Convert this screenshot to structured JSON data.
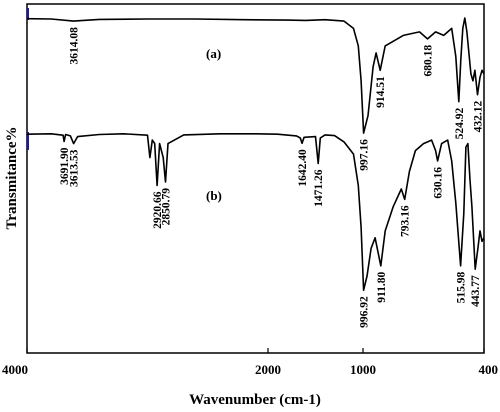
{
  "chart_data": {
    "type": "line",
    "title": "",
    "xlabel": "Wavenumber (cm-1)",
    "ylabel": "Transmitance%",
    "xlim": [
      4000,
      400
    ],
    "x_reversed": true,
    "x_ticks": [
      4000,
      2000,
      1000,
      400
    ],
    "x_tick_labels": [
      "4000",
      "2000",
      "1000",
      "400"
    ],
    "y_ticks_shown": false,
    "series": [
      {
        "name": "(a)",
        "points": [
          [
            4000,
            0.958
          ],
          [
            3800,
            0.957
          ],
          [
            3614.08,
            0.951
          ],
          [
            3400,
            0.956
          ],
          [
            3000,
            0.957
          ],
          [
            2600,
            0.957
          ],
          [
            2200,
            0.955
          ],
          [
            1800,
            0.954
          ],
          [
            1600,
            0.953
          ],
          [
            1400,
            0.955
          ],
          [
            1200,
            0.951
          ],
          [
            1100,
            0.93
          ],
          [
            1050,
            0.88
          ],
          [
            1020,
            0.78
          ],
          [
            997.16,
            0.63
          ],
          [
            975,
            0.68
          ],
          [
            950,
            0.82
          ],
          [
            935,
            0.86
          ],
          [
            914.51,
            0.81
          ],
          [
            890,
            0.88
          ],
          [
            800,
            0.91
          ],
          [
            720,
            0.92
          ],
          [
            680.18,
            0.9
          ],
          [
            640,
            0.92
          ],
          [
            600,
            0.91
          ],
          [
            560,
            0.93
          ],
          [
            540,
            0.85
          ],
          [
            524.92,
            0.72
          ],
          [
            515,
            0.84
          ],
          [
            505,
            0.93
          ],
          [
            495,
            0.96
          ],
          [
            485,
            0.92
          ],
          [
            475,
            0.86
          ],
          [
            465,
            0.8
          ],
          [
            455,
            0.78
          ],
          [
            445,
            0.81
          ],
          [
            432.12,
            0.74
          ],
          [
            420,
            0.79
          ],
          [
            410,
            0.81
          ],
          [
            400,
            0.8
          ]
        ]
      },
      {
        "name": "(b)",
        "points": [
          [
            4000,
            0.627
          ],
          [
            3800,
            0.628
          ],
          [
            3700,
            0.624
          ],
          [
            3691.9,
            0.606
          ],
          [
            3680,
            0.626
          ],
          [
            3640,
            0.622
          ],
          [
            3613.53,
            0.6
          ],
          [
            3580,
            0.62
          ],
          [
            3400,
            0.626
          ],
          [
            3200,
            0.628
          ],
          [
            3000,
            0.624
          ],
          [
            2980,
            0.56
          ],
          [
            2960,
            0.61
          ],
          [
            2940,
            0.6
          ],
          [
            2920.66,
            0.48
          ],
          [
            2900,
            0.6
          ],
          [
            2870,
            0.56
          ],
          [
            2850.79,
            0.49
          ],
          [
            2830,
            0.6
          ],
          [
            2700,
            0.625
          ],
          [
            2400,
            0.628
          ],
          [
            2100,
            0.628
          ],
          [
            1900,
            0.627
          ],
          [
            1700,
            0.622
          ],
          [
            1660,
            0.616
          ],
          [
            1642.4,
            0.601
          ],
          [
            1620,
            0.618
          ],
          [
            1500,
            0.62
          ],
          [
            1471.26,
            0.543
          ],
          [
            1450,
            0.616
          ],
          [
            1400,
            0.625
          ],
          [
            1300,
            0.623
          ],
          [
            1200,
            0.605
          ],
          [
            1100,
            0.57
          ],
          [
            1050,
            0.48
          ],
          [
            1020,
            0.36
          ],
          [
            996.92,
            0.18
          ],
          [
            980,
            0.22
          ],
          [
            960,
            0.3
          ],
          [
            940,
            0.33
          ],
          [
            911.8,
            0.25
          ],
          [
            890,
            0.35
          ],
          [
            850,
            0.42
          ],
          [
            810,
            0.47
          ],
          [
            793.16,
            0.44
          ],
          [
            770,
            0.52
          ],
          [
            740,
            0.58
          ],
          [
            700,
            0.6
          ],
          [
            660,
            0.61
          ],
          [
            640,
            0.58
          ],
          [
            630.16,
            0.55
          ],
          [
            610,
            0.6
          ],
          [
            580,
            0.61
          ],
          [
            560,
            0.55
          ],
          [
            540,
            0.43
          ],
          [
            515.98,
            0.25
          ],
          [
            500,
            0.4
          ],
          [
            490,
            0.59
          ],
          [
            480,
            0.6
          ],
          [
            470,
            0.5
          ],
          [
            460,
            0.42
          ],
          [
            443.77,
            0.24
          ],
          [
            430,
            0.3
          ],
          [
            420,
            0.35
          ],
          [
            410,
            0.32
          ],
          [
            400,
            0.33
          ]
        ]
      }
    ],
    "annotations": [
      {
        "series": "(a)",
        "text": "3614.08",
        "x": 3614.08
      },
      {
        "series": "(a)",
        "text": "997.16",
        "x": 997.16
      },
      {
        "series": "(a)",
        "text": "914.51",
        "x": 914.51
      },
      {
        "series": "(a)",
        "text": "680.18",
        "x": 680.18
      },
      {
        "series": "(a)",
        "text": "524.92",
        "x": 524.92
      },
      {
        "series": "(a)",
        "text": "432.12",
        "x": 432.12
      },
      {
        "series": "(b)",
        "text": "3691.90",
        "x": 3691.9
      },
      {
        "series": "(b)",
        "text": "3613.53",
        "x": 3613.53
      },
      {
        "series": "(b)",
        "text": "2920.66",
        "x": 2920.66
      },
      {
        "series": "(b)",
        "text": "2850.79",
        "x": 2850.79
      },
      {
        "series": "(b)",
        "text": "1642.40",
        "x": 1642.4
      },
      {
        "series": "(b)",
        "text": "1471.26",
        "x": 1471.26
      },
      {
        "series": "(b)",
        "text": "996.92",
        "x": 996.92
      },
      {
        "series": "(b)",
        "text": "911.80",
        "x": 911.8
      },
      {
        "series": "(b)",
        "text": "793.16",
        "x": 793.16
      },
      {
        "series": "(b)",
        "text": "630.16",
        "x": 630.16
      },
      {
        "series": "(b)",
        "text": "515.98",
        "x": 515.98
      },
      {
        "series": "(b)",
        "text": "443.77",
        "x": 443.77
      }
    ],
    "grid": false,
    "legend": "none",
    "colors": {
      "line": "#000000",
      "axis": "#000000",
      "axis_marker": "#1a1aa6"
    }
  }
}
